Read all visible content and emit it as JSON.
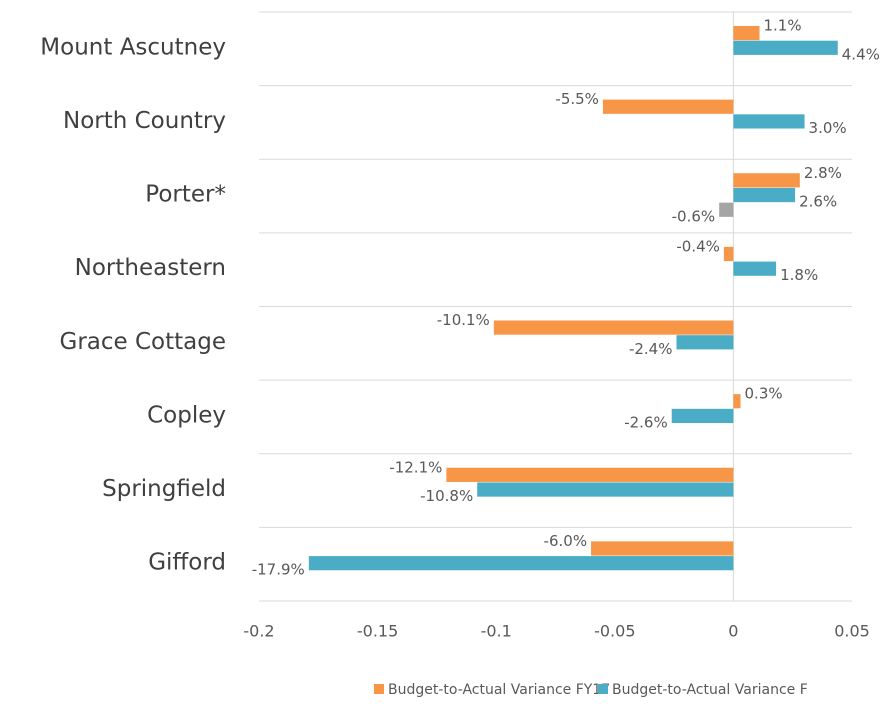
{
  "chart_data": {
    "type": "bar",
    "orientation": "horizontal",
    "categories": [
      "Mount Ascutney",
      "North Country",
      "Porter*",
      "Northeastern",
      "Grace Cottage",
      "Copley",
      "Springfield",
      "Gifford"
    ],
    "series": [
      {
        "name": "Budget-to-Actual Variance FY17",
        "color": "#f79646",
        "values": [
          0.011,
          -0.055,
          0.028,
          -0.004,
          -0.101,
          0.003,
          -0.121,
          -0.06
        ],
        "value_labels": [
          "1.1%",
          "-5.5%",
          "2.8%",
          "-0.4%",
          "-10.1%",
          "0.3%",
          "-12.1%",
          "-6.0%"
        ]
      },
      {
        "name": "Budget-to-Actual Variance F",
        "color": "#4bacc6",
        "values": [
          0.044,
          0.03,
          0.026,
          0.018,
          -0.024,
          -0.026,
          -0.108,
          -0.179
        ],
        "value_labels": [
          "4.4%",
          "3.0%",
          "2.6%",
          "1.8%",
          "-2.4%",
          "-2.6%",
          "-10.8%",
          "-17.9%"
        ]
      },
      {
        "color": "#a5a5a5",
        "values": [
          null,
          null,
          -0.006,
          null,
          null,
          null,
          null,
          null
        ],
        "value_labels": [
          null,
          null,
          "-0.6%",
          null,
          null,
          null,
          null,
          null
        ]
      }
    ],
    "xlim": [
      -0.2,
      0.05
    ],
    "xticks": [
      -0.2,
      -0.15,
      -0.1,
      -0.05,
      0,
      0.05
    ],
    "legend": "bottom"
  }
}
